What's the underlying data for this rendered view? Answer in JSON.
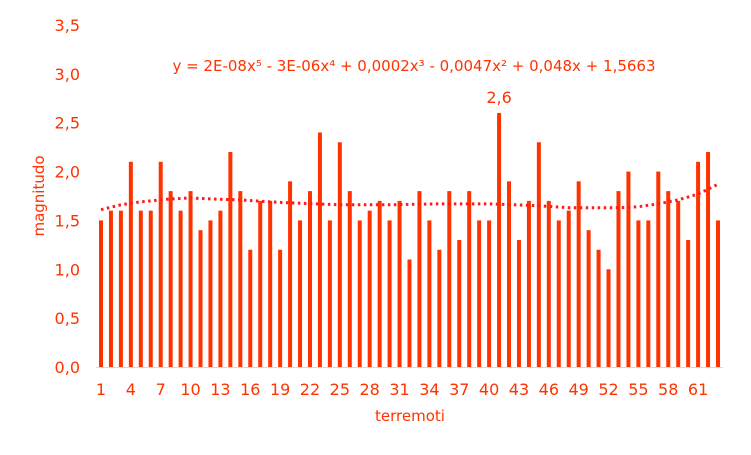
{
  "chart_data": {
    "type": "bar",
    "title": "",
    "xlabel": "terremoti",
    "ylabel": "magnitudo",
    "ylim": [
      0,
      3.5
    ],
    "yticks": [
      "0,0",
      "0,5",
      "1,0",
      "1,5",
      "2,0",
      "2,5",
      "3,0",
      "3,5"
    ],
    "xticks": [
      "1",
      "4",
      "7",
      "10",
      "13",
      "16",
      "19",
      "22",
      "25",
      "28",
      "31",
      "34",
      "37",
      "40",
      "43",
      "46",
      "49",
      "52",
      "55",
      "58",
      "61"
    ],
    "x": [
      1,
      2,
      3,
      4,
      5,
      6,
      7,
      8,
      9,
      10,
      11,
      12,
      13,
      14,
      15,
      16,
      17,
      18,
      19,
      20,
      21,
      22,
      23,
      24,
      25,
      26,
      27,
      28,
      29,
      30,
      31,
      32,
      33,
      34,
      35,
      36,
      37,
      38,
      39,
      40,
      41,
      42,
      43,
      44,
      45,
      46,
      47,
      48,
      49,
      50,
      51,
      52,
      53,
      54,
      55,
      56,
      57,
      58,
      59,
      60,
      61,
      62,
      63
    ],
    "values": [
      1.5,
      1.6,
      1.6,
      2.1,
      1.6,
      1.6,
      2.1,
      1.8,
      1.6,
      1.8,
      1.4,
      1.5,
      1.6,
      2.2,
      1.8,
      1.2,
      1.7,
      1.7,
      1.2,
      1.9,
      1.5,
      1.8,
      2.4,
      1.5,
      2.3,
      1.8,
      1.5,
      1.6,
      1.7,
      1.5,
      1.7,
      1.1,
      1.8,
      1.5,
      1.2,
      1.8,
      1.3,
      1.8,
      1.5,
      1.5,
      2.6,
      1.9,
      1.3,
      1.7,
      2.3,
      1.7,
      1.5,
      1.6,
      1.9,
      1.4,
      1.2,
      1.0,
      1.8,
      2.0,
      1.5,
      1.5,
      2.0,
      1.8,
      1.7,
      1.3,
      2.1,
      2.2,
      1.5
    ],
    "data_labels": [
      {
        "x": 41,
        "text": "2,6"
      }
    ],
    "trendline": {
      "type": "polynomial order 5",
      "equation": "y = 2E-08x⁵ - 3E-06x⁴ + 0,0002x³ - 0,0047x² + 0,048x + 1,5663",
      "points": [
        [
          1,
          1.61
        ],
        [
          3,
          1.66
        ],
        [
          5,
          1.69
        ],
        [
          8,
          1.72
        ],
        [
          10,
          1.73
        ],
        [
          12,
          1.72
        ],
        [
          15,
          1.71
        ],
        [
          18,
          1.69
        ],
        [
          20,
          1.68
        ],
        [
          25,
          1.66
        ],
        [
          30,
          1.66
        ],
        [
          35,
          1.67
        ],
        [
          40,
          1.67
        ],
        [
          45,
          1.65
        ],
        [
          48,
          1.63
        ],
        [
          50,
          1.63
        ],
        [
          53,
          1.63
        ],
        [
          55,
          1.64
        ],
        [
          57,
          1.67
        ],
        [
          59,
          1.71
        ],
        [
          61,
          1.77
        ],
        [
          63,
          1.87
        ]
      ]
    },
    "colors": {
      "bar": "#ff3300",
      "trend": "#ff1a1a",
      "text": "#ff3300",
      "axis": "#d9d9d9"
    },
    "grid": false,
    "legend": "none"
  }
}
